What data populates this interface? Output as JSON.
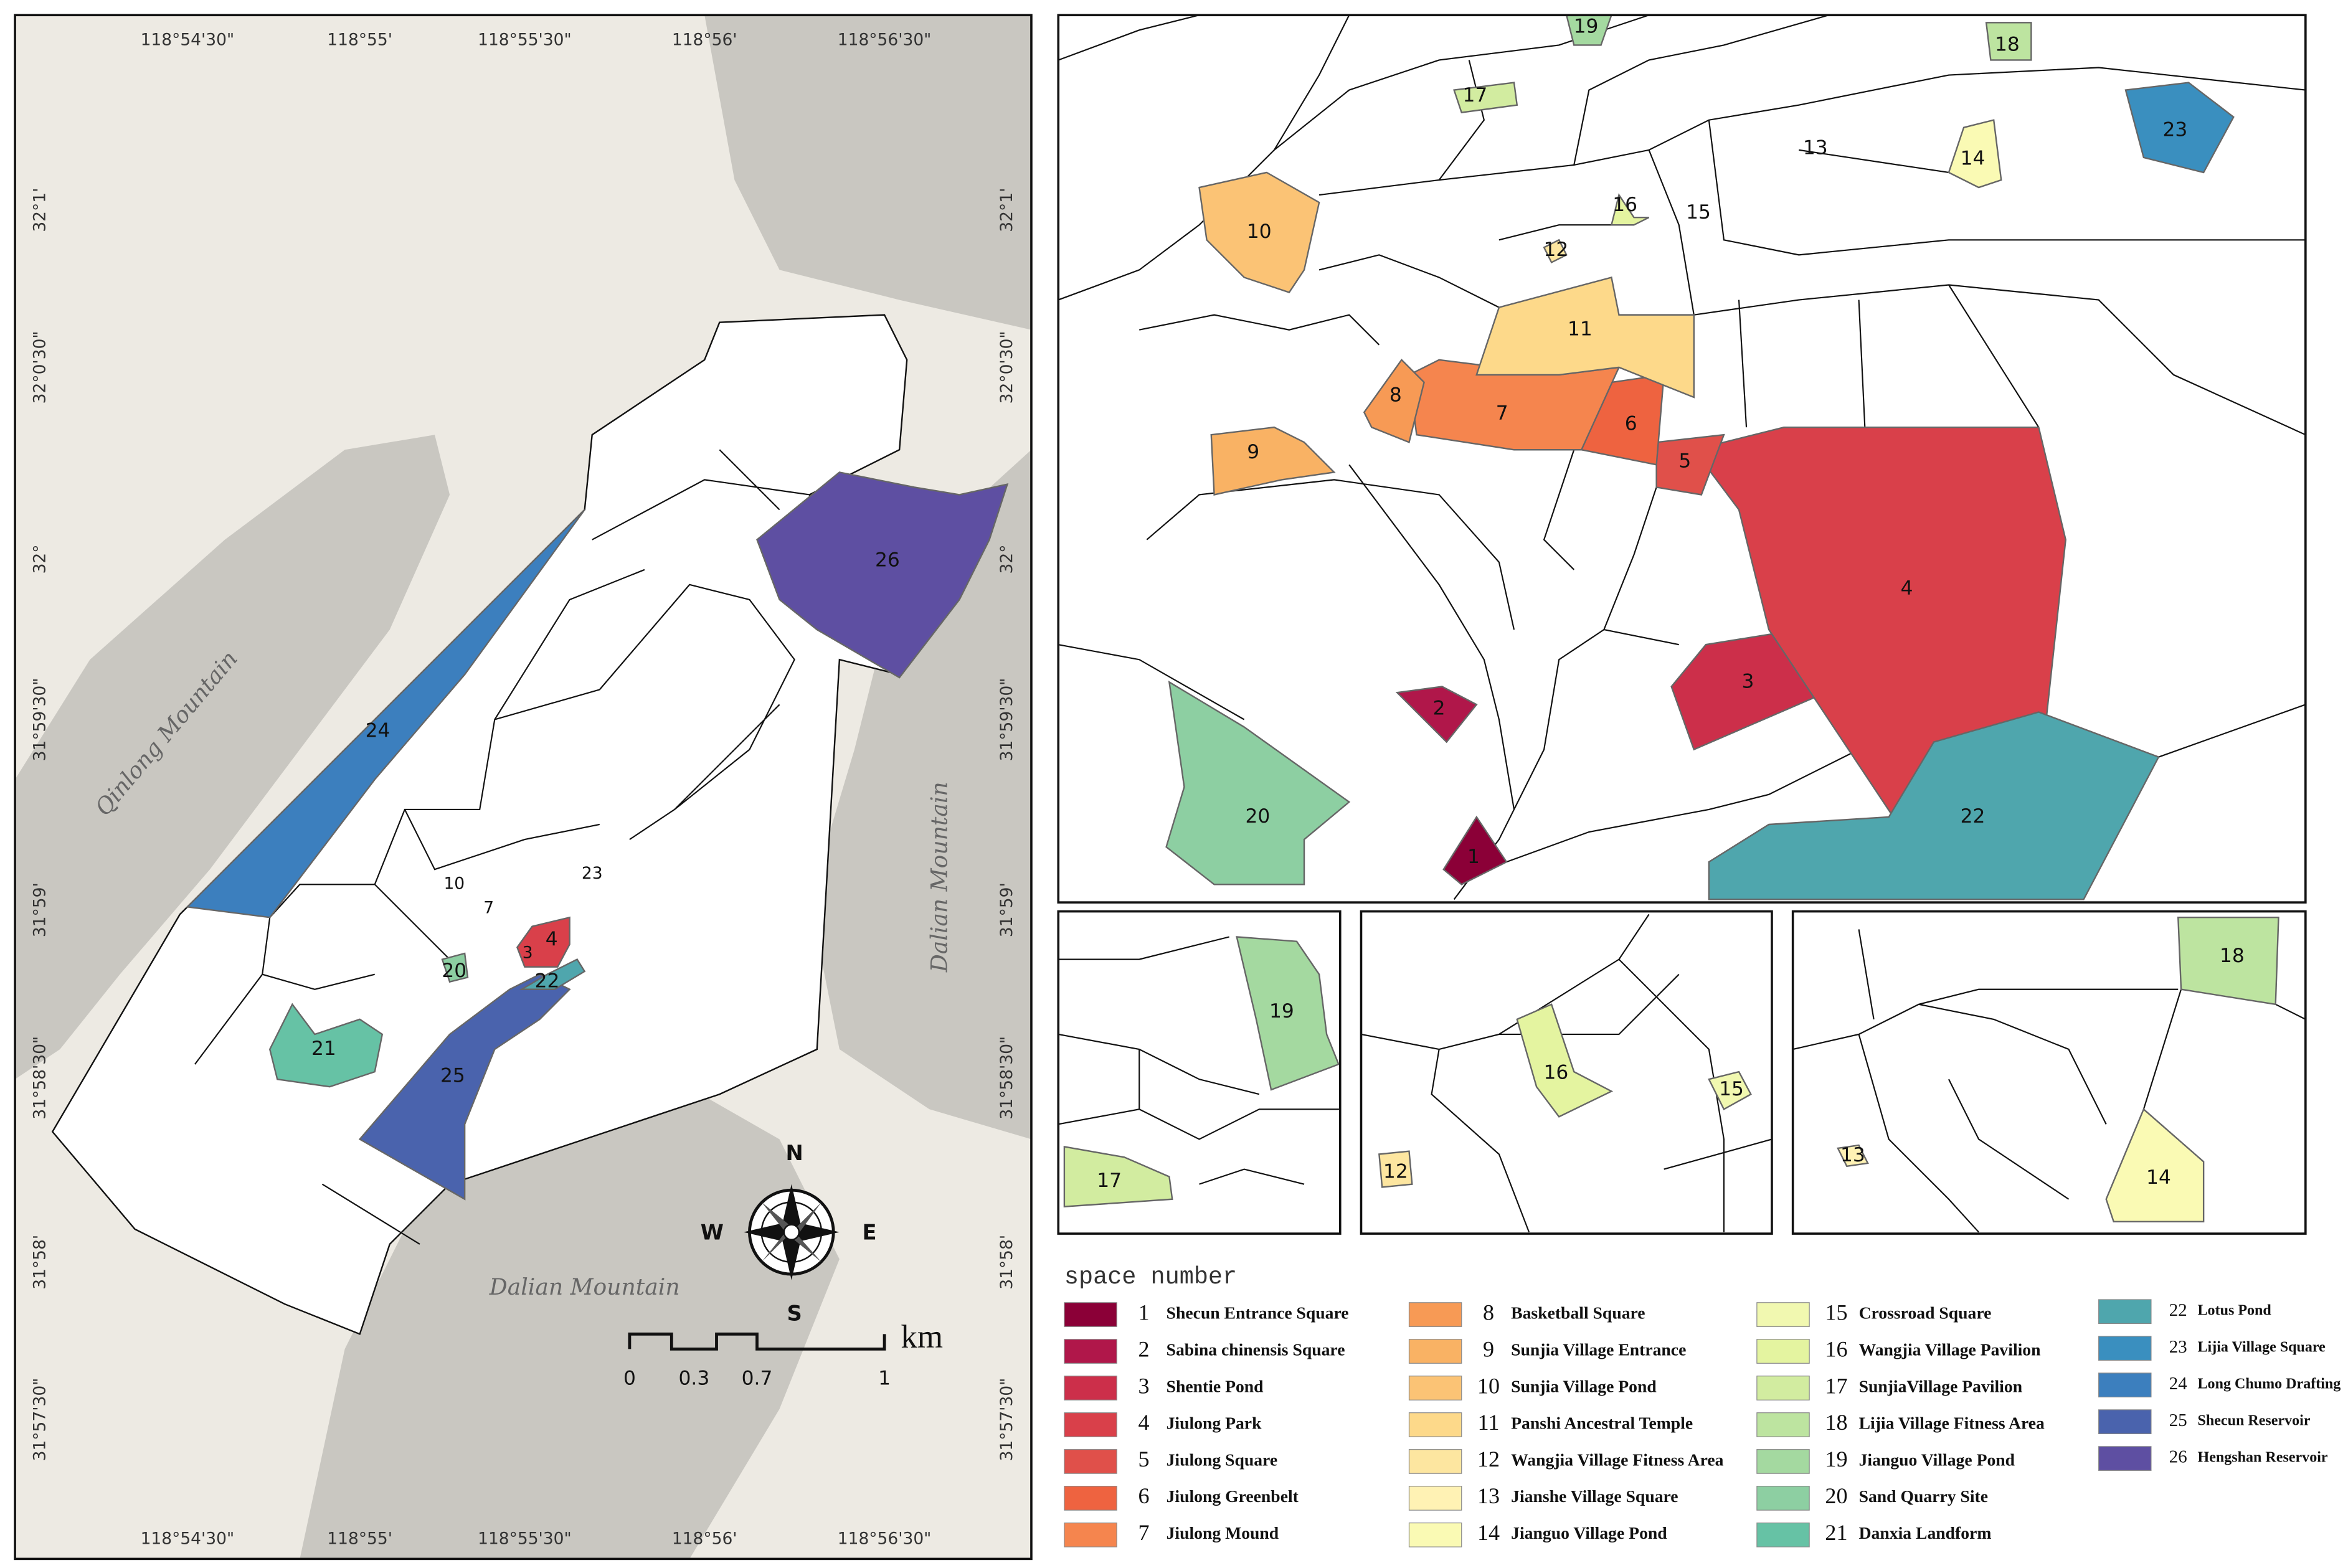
{
  "main_map": {
    "lon_labels": [
      "118°54'30\"",
      "118°55'",
      "118°55'30\"",
      "118°56'",
      "118°56'30\""
    ],
    "lat_labels": [
      "32°1'",
      "32°0'30\"",
      "32°",
      "31°59'30\"",
      "31°59'",
      "31°58'30\"",
      "31°58'",
      "31°57'30\""
    ],
    "mountains": [
      "Qinlong Mountain",
      "Dalian Mountain",
      "Dalian Mountain"
    ],
    "compass": {
      "north": "N",
      "south": "S",
      "west": "W",
      "east": "E"
    },
    "scale": {
      "unit": "km",
      "ticks": [
        "0",
        "0.3",
        "0.7",
        "1"
      ]
    }
  },
  "legend": {
    "title": "space number",
    "items": [
      {
        "number": "1",
        "name": "Shecun Entrance Square",
        "color": "#8b0037"
      },
      {
        "number": "2",
        "name": "Sabina chinensis Square",
        "color": "#b0174a"
      },
      {
        "number": "3",
        "name": "Shentie Pond",
        "color": "#cc2f4a"
      },
      {
        "number": "4",
        "name": "Jiulong Park",
        "color": "#d9404a"
      },
      {
        "number": "5",
        "name": "Jiulong Square",
        "color": "#e0504a"
      },
      {
        "number": "6",
        "name": "Jiulong Greenbelt",
        "color": "#ee6340"
      },
      {
        "number": "7",
        "name": "Jiulong Mound",
        "color": "#f5854e"
      },
      {
        "number": "8",
        "name": "Basketball Square",
        "color": "#f79a55"
      },
      {
        "number": "9",
        "name": "Sunjia Village Entrance",
        "color": "#f9b264"
      },
      {
        "number": "10",
        "name": "Sunjia Village Pond",
        "color": "#fbc375"
      },
      {
        "number": "11",
        "name": "Panshi Ancestral Temple",
        "color": "#fdd98a"
      },
      {
        "number": "12",
        "name": "Wangjia Village Fitness Area",
        "color": "#fde6a0"
      },
      {
        "number": "13",
        "name": "Jianshe Village Square",
        "color": "#fff2b4"
      },
      {
        "number": "14",
        "name": "Jianguo Village Pond",
        "color": "#fafab4"
      },
      {
        "number": "15",
        "name": "Crossroad Square",
        "color": "#f1f8b0"
      },
      {
        "number": "16",
        "name": "Wangjia Village Pavilion",
        "color": "#e4f4a0"
      },
      {
        "number": "17",
        "name": "SunjiaVillage Pavilion",
        "color": "#d2eca0"
      },
      {
        "number": "18",
        "name": "Lijia Village Fitness Area",
        "color": "#bde4a0"
      },
      {
        "number": "19",
        "name": "Jianguo Village Pond",
        "color": "#a4d9a0"
      },
      {
        "number": "20",
        "name": "Sand Quarry Site",
        "color": "#8dcfa2"
      },
      {
        "number": "21",
        "name": "Danxia Landform",
        "color": "#66c2a5"
      },
      {
        "number": "22",
        "name": "Lotus Pond",
        "color": "#4fa6ad"
      },
      {
        "number": "23",
        "name": "Lijia Village Square",
        "color": "#3a8fbf"
      },
      {
        "number": "24",
        "name": "Long Chumo Drafting",
        "color": "#3c7fbe"
      },
      {
        "number": "25",
        "name": "Shecun Reservoir",
        "color": "#4a63ad"
      },
      {
        "number": "26",
        "name": "Hengshan Reservoir",
        "color": "#5e4fa2"
      }
    ]
  }
}
